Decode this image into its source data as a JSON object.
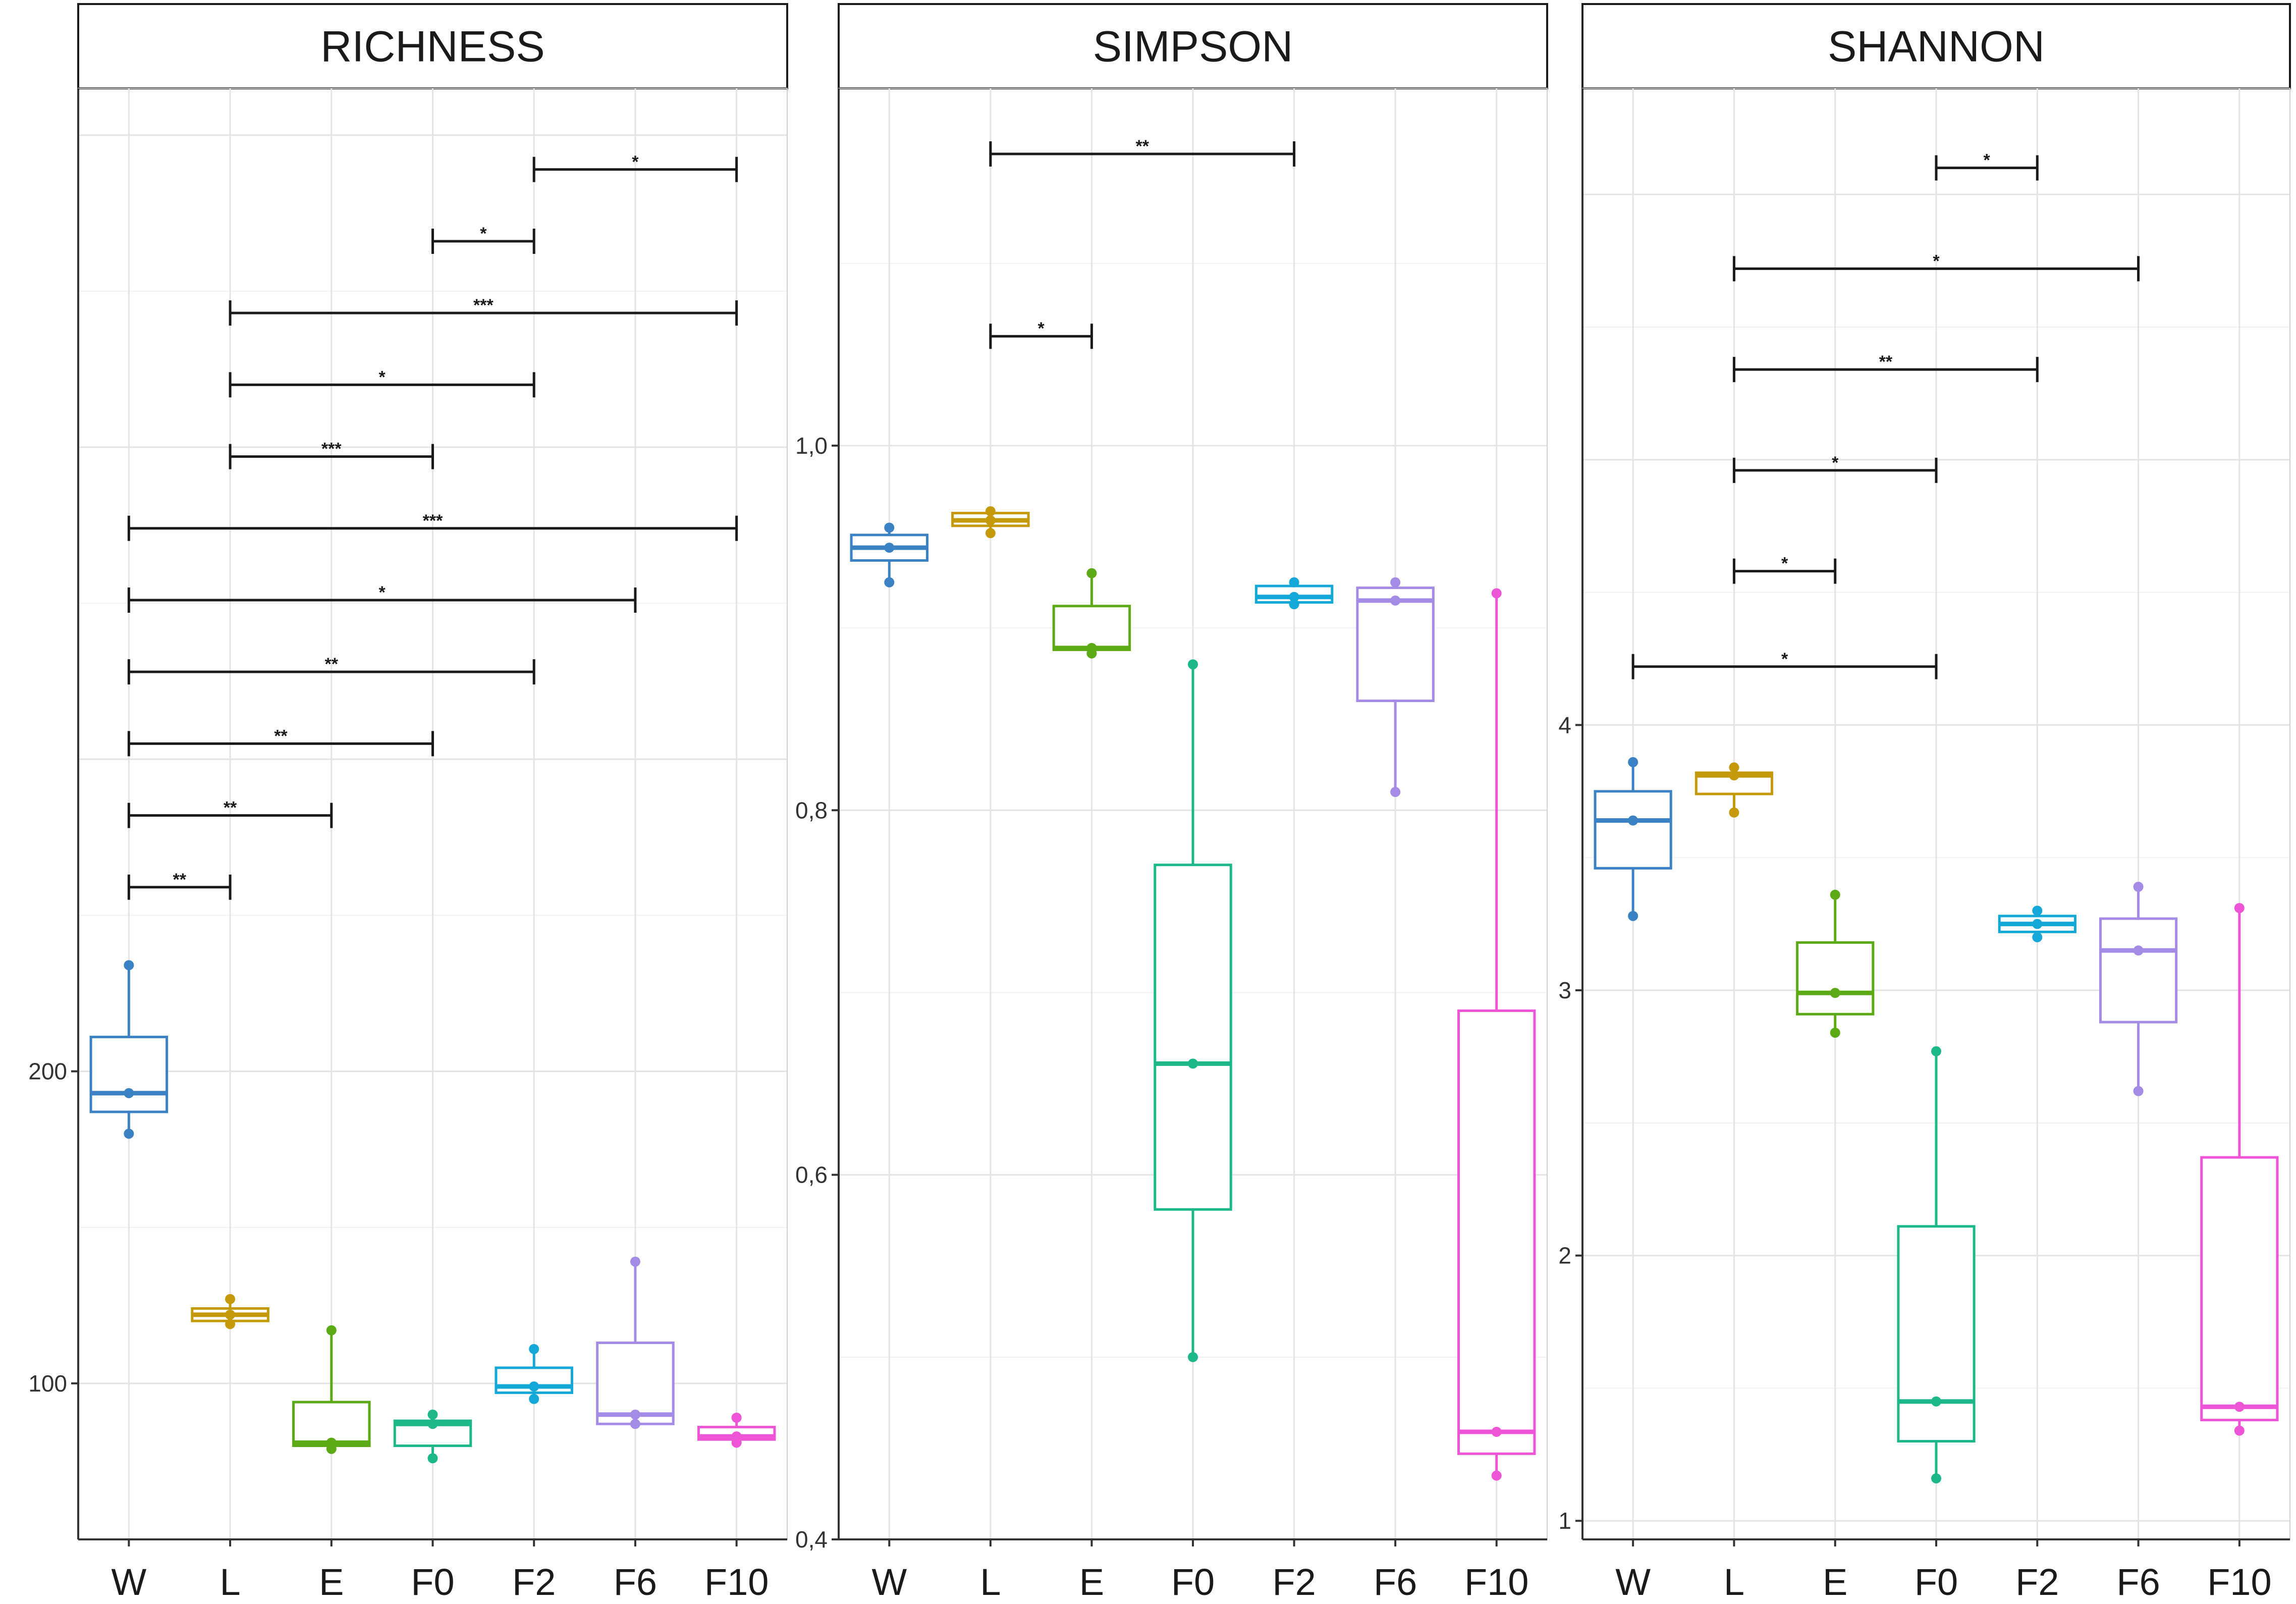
{
  "chart_data": {
    "type": "box",
    "categories": [
      "W",
      "L",
      "E",
      "F0",
      "F2",
      "F6",
      "F10"
    ],
    "colors": {
      "W": "#3B82C4",
      "L": "#C49A0A",
      "E": "#5BAA16",
      "F0": "#1DB88A",
      "F2": "#13A8D8",
      "F6": "#A48BE6",
      "F10": "#EE55D6"
    },
    "panels": [
      {
        "title": "RICHNESS",
        "ylim": [
          50,
          515
        ],
        "yticks": [
          100,
          200
        ],
        "ytick_labels": [
          "100",
          "200"
        ],
        "grid_major": [
          100,
          200,
          300,
          400,
          500
        ],
        "boxes": [
          {
            "group": "W",
            "min": 180,
            "q1": 187,
            "median": 193,
            "q3": 211,
            "max": 234,
            "points": [
              180,
              193,
              234
            ]
          },
          {
            "group": "L",
            "min": 119,
            "q1": 120,
            "median": 122,
            "q3": 124,
            "max": 127,
            "points": [
              119,
              122,
              127
            ]
          },
          {
            "group": "E",
            "min": 79,
            "q1": 80,
            "median": 81,
            "q3": 94,
            "max": 117,
            "points": [
              79,
              81,
              117
            ]
          },
          {
            "group": "F0",
            "min": 76,
            "q1": 80,
            "median": 87,
            "q3": 88,
            "max": 90,
            "points": [
              76,
              87,
              90
            ]
          },
          {
            "group": "F2",
            "min": 95,
            "q1": 97,
            "median": 99,
            "q3": 105,
            "max": 111,
            "points": [
              95,
              99,
              111
            ]
          },
          {
            "group": "F6",
            "min": 87,
            "q1": 87,
            "median": 90,
            "q3": 113,
            "max": 139,
            "points": [
              87,
              90,
              139
            ]
          },
          {
            "group": "F10",
            "min": 81,
            "q1": 82,
            "median": 83,
            "q3": 86,
            "max": 89,
            "points": [
              81,
              83,
              89
            ]
          }
        ],
        "comparisons": [
          {
            "from": "F2",
            "to": "F10",
            "y": 489,
            "label": "*"
          },
          {
            "from": "F0",
            "to": "F2",
            "y": 466,
            "label": "*"
          },
          {
            "from": "L",
            "to": "F10",
            "y": 443,
            "label": "***"
          },
          {
            "from": "L",
            "to": "F2",
            "y": 420,
            "label": "*"
          },
          {
            "from": "L",
            "to": "F0",
            "y": 397,
            "label": "***"
          },
          {
            "from": "W",
            "to": "F10",
            "y": 374,
            "label": "***"
          },
          {
            "from": "W",
            "to": "F6",
            "y": 351,
            "label": "*"
          },
          {
            "from": "W",
            "to": "F2",
            "y": 328,
            "label": "**"
          },
          {
            "from": "W",
            "to": "F0",
            "y": 305,
            "label": "**"
          },
          {
            "from": "W",
            "to": "E",
            "y": 282,
            "label": "**"
          },
          {
            "from": "W",
            "to": "L",
            "y": 259,
            "label": "**"
          }
        ]
      },
      {
        "title": "SIMPSON",
        "ylim": [
          0.4,
          1.196
        ],
        "yticks": [
          0.4,
          0.6,
          0.8,
          1.0
        ],
        "ytick_labels": [
          "0,4",
          "0,6",
          "0,8",
          "1,0"
        ],
        "grid_major": [
          0.4,
          0.6,
          0.8,
          1.0
        ],
        "boxes": [
          {
            "group": "W",
            "min": 0.925,
            "q1": 0.937,
            "median": 0.944,
            "q3": 0.951,
            "max": 0.955,
            "points": [
              0.925,
              0.944,
              0.955
            ]
          },
          {
            "group": "L",
            "min": 0.952,
            "q1": 0.956,
            "median": 0.959,
            "q3": 0.963,
            "max": 0.964,
            "points": [
              0.952,
              0.959,
              0.964
            ]
          },
          {
            "group": "E",
            "min": 0.886,
            "q1": 0.888,
            "median": 0.889,
            "q3": 0.912,
            "max": 0.93,
            "points": [
              0.886,
              0.889,
              0.93
            ]
          },
          {
            "group": "F0",
            "min": 0.5,
            "q1": 0.581,
            "median": 0.661,
            "q3": 0.77,
            "max": 0.88,
            "points": [
              0.5,
              0.661,
              0.88
            ]
          },
          {
            "group": "F2",
            "min": 0.913,
            "q1": 0.914,
            "median": 0.917,
            "q3": 0.923,
            "max": 0.925,
            "points": [
              0.913,
              0.917,
              0.925
            ]
          },
          {
            "group": "F6",
            "min": 0.81,
            "q1": 0.86,
            "median": 0.915,
            "q3": 0.922,
            "max": 0.925,
            "points": [
              0.81,
              0.915,
              0.925
            ]
          },
          {
            "group": "F10",
            "min": 0.435,
            "q1": 0.447,
            "median": 0.459,
            "q3": 0.69,
            "max": 0.919,
            "points": [
              0.435,
              0.459,
              0.919
            ]
          }
        ],
        "comparisons": [
          {
            "from": "L",
            "to": "F2",
            "y": 1.16,
            "label": "**"
          },
          {
            "from": "L",
            "to": "E",
            "y": 1.06,
            "label": "*"
          }
        ]
      },
      {
        "title": "SHANNON",
        "ylim": [
          0.93,
          6.4
        ],
        "yticks": [
          1,
          2,
          3,
          4
        ],
        "ytick_labels": [
          "1",
          "2",
          "3",
          "4"
        ],
        "grid_major": [
          1,
          2,
          3,
          4,
          5,
          6
        ],
        "boxes": [
          {
            "group": "W",
            "min": 3.28,
            "q1": 3.46,
            "median": 3.64,
            "q3": 3.75,
            "max": 3.86,
            "points": [
              3.28,
              3.64,
              3.86
            ]
          },
          {
            "group": "L",
            "min": 3.67,
            "q1": 3.74,
            "median": 3.81,
            "q3": 3.82,
            "max": 3.84,
            "points": [
              3.67,
              3.81,
              3.84
            ]
          },
          {
            "group": "E",
            "min": 2.84,
            "q1": 2.91,
            "median": 2.99,
            "q3": 3.18,
            "max": 3.36,
            "points": [
              2.84,
              2.99,
              3.36
            ]
          },
          {
            "group": "F0",
            "min": 1.16,
            "q1": 1.3,
            "median": 1.45,
            "q3": 2.11,
            "max": 2.77,
            "points": [
              1.16,
              1.45,
              2.77
            ]
          },
          {
            "group": "F2",
            "min": 3.2,
            "q1": 3.22,
            "median": 3.25,
            "q3": 3.28,
            "max": 3.3,
            "points": [
              3.2,
              3.25,
              3.3
            ]
          },
          {
            "group": "F6",
            "min": 2.62,
            "q1": 2.88,
            "median": 3.15,
            "q3": 3.27,
            "max": 3.39,
            "points": [
              2.62,
              3.15,
              3.39
            ]
          },
          {
            "group": "F10",
            "min": 1.34,
            "q1": 1.38,
            "median": 1.43,
            "q3": 2.37,
            "max": 3.31,
            "points": [
              1.34,
              1.43,
              3.31
            ]
          }
        ],
        "comparisons": [
          {
            "from": "F0",
            "to": "F2",
            "y": 6.1,
            "label": "*"
          },
          {
            "from": "L",
            "to": "F6",
            "y": 5.72,
            "label": "*"
          },
          {
            "from": "L",
            "to": "F2",
            "y": 5.34,
            "label": "**"
          },
          {
            "from": "L",
            "to": "F0",
            "y": 4.96,
            "label": "*"
          },
          {
            "from": "L",
            "to": "E",
            "y": 4.58,
            "label": "*"
          },
          {
            "from": "W",
            "to": "F0",
            "y": 4.22,
            "label": "*"
          }
        ]
      }
    ]
  }
}
